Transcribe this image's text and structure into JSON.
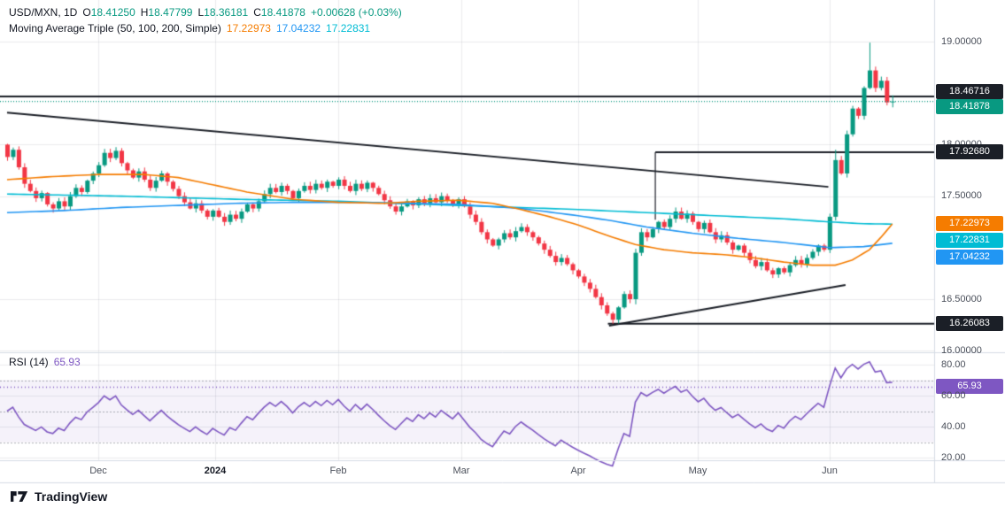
{
  "header": {
    "symbol_tf": "USD/MXN, 1D",
    "o_label": "O",
    "o": "18.41250",
    "h_label": "H",
    "h": "18.47799",
    "l_label": "L",
    "l": "18.36181",
    "c_label": "C",
    "c": "18.41878",
    "change": "+0.00628 (+0.03%)",
    "indicator_title": "Moving Average Triple (50, 100, 200, Simple)",
    "ma50_value": "17.22973",
    "ma100_value": "17.04232",
    "ma200_value": "17.22831"
  },
  "rsi_legend": {
    "title": "RSI (14)",
    "value": "65.93"
  },
  "price_axis": {
    "t19": "19.00000",
    "t18": "18.00000",
    "t175": "17.50000",
    "t165": "16.50000",
    "t16": "16.00000",
    "b_res": "18.46716",
    "b_last": "18.41878",
    "b_mid": "17.92680",
    "b_ma50": "17.22973",
    "b_ma200": "17.22831",
    "b_ma100": "17.04232",
    "b_sup": "16.26083",
    "b_rsi": "65.93",
    "r80": "80.00",
    "r60": "60.00",
    "r40": "40.00",
    "r20": "20.00"
  },
  "time_axis": {
    "m1": "Dec",
    "m2": "2024",
    "m3": "Feb",
    "m4": "Mar",
    "m5": "Apr",
    "m6": "May",
    "m7": "Jun"
  },
  "footer": {
    "brand": "TradingView"
  },
  "colors": {
    "up": "#089981",
    "down": "#F23645",
    "ma50": "#F57C00",
    "ma100": "#2196F3",
    "ma200": "#00BCD4",
    "rsi": "#7E57C2",
    "level": "#1B1F27",
    "last_line": "#089981"
  },
  "chart_data": {
    "type": "candlestick",
    "symbol": "USD/MXN",
    "interval": "1D",
    "ohlc_last": {
      "open": 18.4125,
      "high": 18.47799,
      "low": 18.36181,
      "close": 18.41878,
      "change": 0.00628,
      "change_pct": 0.03
    },
    "ylim_main": [
      16.0,
      19.4
    ],
    "price_axis_ticks": [
      19.0,
      18.0,
      17.5,
      16.5,
      16.0
    ],
    "months": [
      "Dec",
      "2024",
      "Feb",
      "Mar",
      "Apr",
      "May",
      "Jun"
    ],
    "month_indices": [
      16,
      36.5,
      58,
      79.5,
      100,
      121,
      144
    ],
    "first_open": 18.0,
    "closes": [
      17.88,
      17.95,
      17.78,
      17.62,
      17.55,
      17.48,
      17.53,
      17.42,
      17.38,
      17.45,
      17.4,
      17.5,
      17.58,
      17.54,
      17.65,
      17.72,
      17.8,
      17.92,
      17.87,
      17.94,
      17.82,
      17.75,
      17.68,
      17.74,
      17.66,
      17.58,
      17.65,
      17.72,
      17.64,
      17.57,
      17.5,
      17.44,
      17.38,
      17.43,
      17.36,
      17.3,
      17.36,
      17.3,
      17.25,
      17.32,
      17.28,
      17.35,
      17.42,
      17.38,
      17.45,
      17.52,
      17.58,
      17.54,
      17.6,
      17.55,
      17.48,
      17.55,
      17.6,
      17.56,
      17.62,
      17.58,
      17.64,
      17.6,
      17.66,
      17.6,
      17.55,
      17.62,
      17.57,
      17.63,
      17.58,
      17.52,
      17.46,
      17.4,
      17.35,
      17.4,
      17.45,
      17.41,
      17.47,
      17.43,
      17.48,
      17.44,
      17.5,
      17.46,
      17.42,
      17.47,
      17.4,
      17.32,
      17.25,
      17.15,
      17.08,
      17.02,
      17.08,
      17.14,
      17.1,
      17.16,
      17.2,
      17.15,
      17.1,
      17.04,
      16.98,
      16.92,
      16.86,
      16.9,
      16.84,
      16.78,
      16.72,
      16.66,
      16.6,
      16.52,
      16.44,
      16.36,
      16.3,
      16.42,
      16.55,
      16.5,
      16.95,
      17.15,
      17.1,
      17.18,
      17.25,
      17.2,
      17.28,
      17.35,
      17.28,
      17.33,
      17.25,
      17.18,
      17.24,
      17.15,
      17.08,
      17.12,
      17.05,
      16.98,
      17.02,
      16.95,
      16.88,
      16.82,
      16.86,
      16.78,
      16.74,
      16.8,
      16.76,
      16.83,
      16.88,
      16.84,
      16.9,
      16.96,
      17.02,
      16.98,
      17.3,
      17.85,
      17.72,
      18.1,
      18.35,
      18.28,
      18.55,
      18.72,
      18.55,
      18.62,
      18.41,
      18.41878
    ],
    "wick_base": 0.008,
    "wick_var": 0.032,
    "overrides": {
      "106": {
        "l": 16.26083
      },
      "110": {
        "l": 16.45
      },
      "145": {
        "h": 17.95
      },
      "151": {
        "h": 18.99
      },
      "155": {
        "o": 18.4125,
        "h": 18.47799,
        "l": 18.36181
      }
    },
    "levels": {
      "resistance": 18.46716,
      "mid": 17.9268,
      "support": 16.26083,
      "last_price": 18.41878
    },
    "mid_level_start_index": 113.5,
    "support_start_index": 105.2,
    "vline": {
      "index": 113.5,
      "from": 17.9268,
      "to": 17.27
    },
    "trendlines": [
      {
        "i1": 0,
        "p1": 18.31,
        "i2": 143.8,
        "p2": 17.59
      },
      {
        "i1": 105.4,
        "p1": 16.242,
        "i2": 146.8,
        "p2": 16.637
      }
    ],
    "moving_averages": {
      "type": "SMA",
      "periods": [
        50,
        100,
        200
      ],
      "last": {
        "ma50": 17.22973,
        "ma100": 17.04232,
        "ma200": 17.22831
      },
      "ma50_points": [
        [
          0,
          17.66
        ],
        [
          8,
          17.69
        ],
        [
          16,
          17.71
        ],
        [
          24,
          17.71
        ],
        [
          30,
          17.68
        ],
        [
          36,
          17.61
        ],
        [
          42,
          17.54
        ],
        [
          50,
          17.47
        ],
        [
          58,
          17.44
        ],
        [
          66,
          17.43
        ],
        [
          72,
          17.45
        ],
        [
          79,
          17.46
        ],
        [
          85,
          17.43
        ],
        [
          90,
          17.37
        ],
        [
          95,
          17.3
        ],
        [
          100,
          17.22
        ],
        [
          105,
          17.12
        ],
        [
          110,
          17.03
        ],
        [
          115,
          16.98
        ],
        [
          120,
          16.95
        ],
        [
          126,
          16.93
        ],
        [
          131,
          16.9
        ],
        [
          136,
          16.86
        ],
        [
          141,
          16.83
        ],
        [
          145,
          16.83
        ],
        [
          148,
          16.88
        ],
        [
          151,
          16.98
        ],
        [
          153,
          17.1
        ],
        [
          155,
          17.22973
        ]
      ],
      "ma100_points": [
        [
          0,
          17.34
        ],
        [
          10,
          17.36
        ],
        [
          20,
          17.39
        ],
        [
          30,
          17.41
        ],
        [
          40,
          17.43
        ],
        [
          50,
          17.44
        ],
        [
          60,
          17.44
        ],
        [
          70,
          17.43
        ],
        [
          79,
          17.42
        ],
        [
          90,
          17.38
        ],
        [
          100,
          17.31
        ],
        [
          106,
          17.26
        ],
        [
          112,
          17.2
        ],
        [
          120,
          17.14
        ],
        [
          128,
          17.09
        ],
        [
          136,
          17.05
        ],
        [
          144,
          17.0
        ],
        [
          150,
          17.01
        ],
        [
          155,
          17.04232
        ]
      ],
      "ma200_points": [
        [
          0,
          17.52
        ],
        [
          20,
          17.5
        ],
        [
          40,
          17.47
        ],
        [
          58,
          17.45
        ],
        [
          79,
          17.41
        ],
        [
          100,
          17.37
        ],
        [
          120,
          17.32
        ],
        [
          136,
          17.28
        ],
        [
          144,
          17.25
        ],
        [
          150,
          17.232
        ],
        [
          155,
          17.22831
        ]
      ]
    },
    "rsi": {
      "period": 14,
      "last": 65.93,
      "band": [
        30,
        70
      ],
      "dashed_levels": [
        70,
        50,
        30
      ],
      "axis_ticks": [
        80,
        60,
        40,
        20
      ]
    }
  }
}
